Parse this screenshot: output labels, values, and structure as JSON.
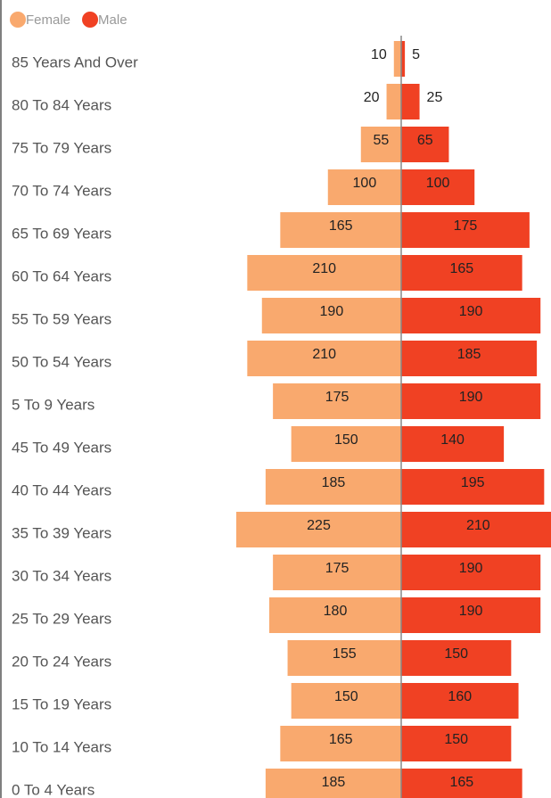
{
  "chart_data": {
    "type": "pyramid",
    "categories": [
      "85 Years And Over",
      "80 To 84 Years",
      "75 To 79 Years",
      "70 To 74 Years",
      "65 To 69 Years",
      "60 To 64 Years",
      "55 To 59 Years",
      "50 To 54 Years",
      "5 To 9 Years",
      "45 To 49 Years",
      "40 To 44 Years",
      "35 To 39 Years",
      "30 To 34 Years",
      "25 To 29 Years",
      "20 To 24 Years",
      "15 To 19 Years",
      "10 To 14 Years",
      "0 To 4 Years"
    ],
    "series": [
      {
        "name": "Female",
        "color": "#f9a96e",
        "values": [
          10,
          20,
          55,
          100,
          165,
          210,
          190,
          210,
          175,
          150,
          185,
          225,
          175,
          180,
          155,
          150,
          165,
          185
        ]
      },
      {
        "name": "Male",
        "color": "#f04123",
        "values": [
          5,
          25,
          65,
          100,
          175,
          165,
          190,
          185,
          190,
          140,
          195,
          210,
          190,
          190,
          150,
          160,
          150,
          165
        ]
      }
    ],
    "legend": "top-left"
  }
}
